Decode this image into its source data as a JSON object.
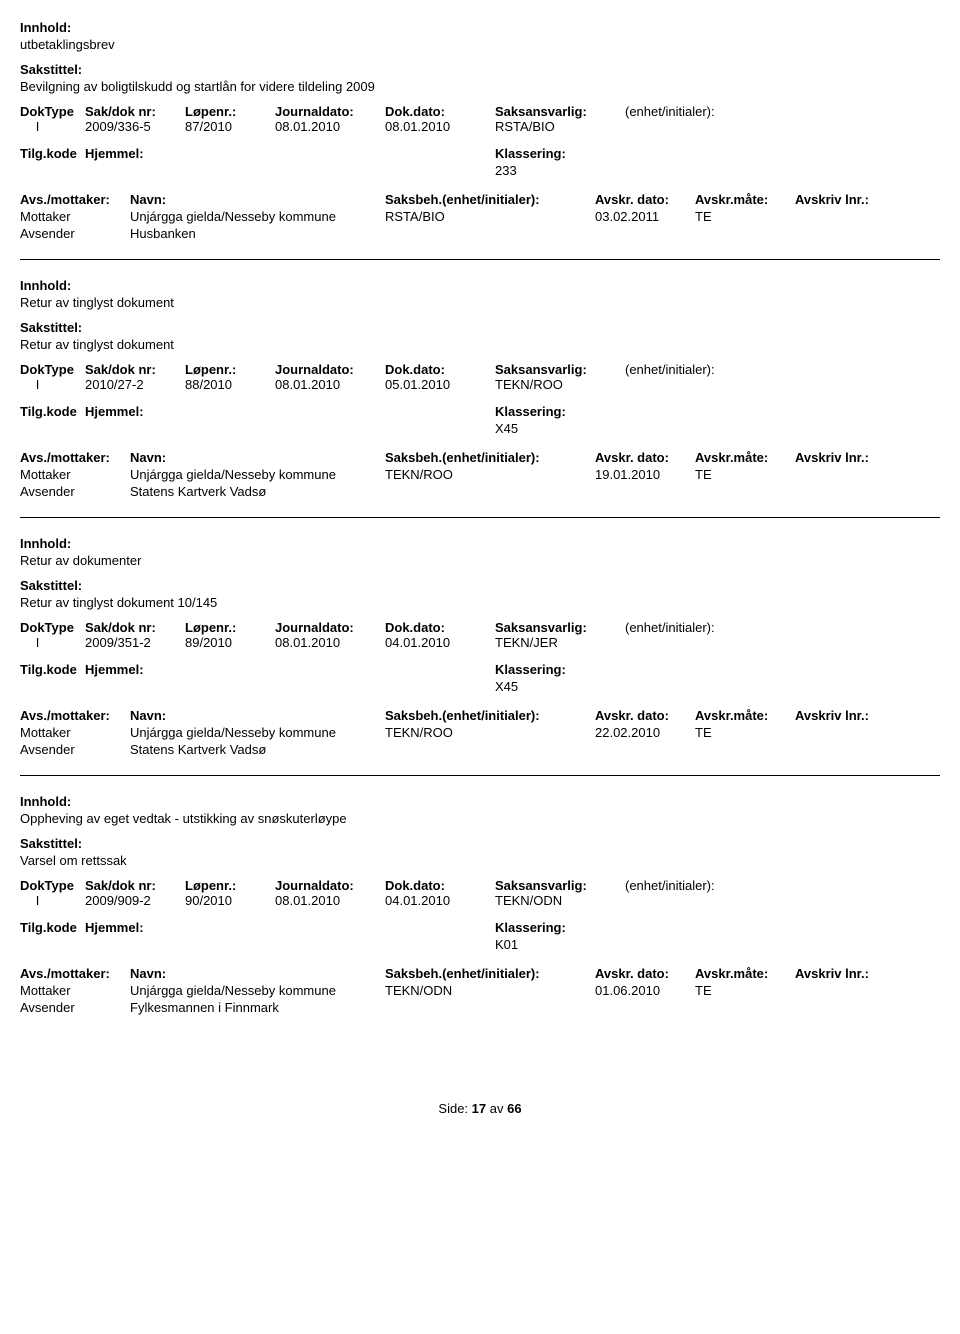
{
  "labels": {
    "innhold": "Innhold:",
    "sakstittel": "Sakstittel:",
    "doktype": "DokType",
    "saknr": "Sak/dok nr:",
    "lopenr": "Løpenr.:",
    "journaldato": "Journaldato:",
    "dokdato": "Dok.dato:",
    "saksansvarlig": "Saksansvarlig:",
    "enhet": "(enhet/initialer):",
    "tilgkode": "Tilg.kode",
    "hjemmel": "Hjemmel:",
    "klassering": "Klassering:",
    "avsmottaker": "Avs./mottaker:",
    "navn": "Navn:",
    "saksbeh": "Saksbeh.(enhet/initialer):",
    "avskrdato": "Avskr. dato:",
    "avskrmate": "Avskr.måte:",
    "avskrivlnr": "Avskriv lnr.:",
    "mottaker": "Mottaker",
    "avsender": "Avsender",
    "side": "Side:",
    "av": "av"
  },
  "footer": {
    "page": "17",
    "total": "66"
  },
  "records": [
    {
      "innhold": "utbetaklingsbrev",
      "sakstittel": "Bevilgning av boligtilskudd og startlån for videre tildeling 2009",
      "doktype": "I",
      "saknr": "2009/336-5",
      "lopenr": "87/2010",
      "journaldato": "08.01.2010",
      "dokdato": "08.01.2010",
      "saksansvarlig": "RSTA/BIO",
      "klassering": "233",
      "parties": [
        {
          "role": "Mottaker",
          "navn": "Unjárgga gielda/Nesseby kommune",
          "saksbeh": "RSTA/BIO",
          "avskrdato": "03.02.2011",
          "avskrmate": "TE"
        },
        {
          "role": "Avsender",
          "navn": "Husbanken",
          "saksbeh": "",
          "avskrdato": "",
          "avskrmate": ""
        }
      ]
    },
    {
      "innhold": "Retur av tinglyst dokument",
      "sakstittel": "Retur av tinglyst dokument",
      "doktype": "I",
      "saknr": "2010/27-2",
      "lopenr": "88/2010",
      "journaldato": "08.01.2010",
      "dokdato": "05.01.2010",
      "saksansvarlig": "TEKN/ROO",
      "klassering": "X45",
      "parties": [
        {
          "role": "Mottaker",
          "navn": "Unjárgga gielda/Nesseby kommune",
          "saksbeh": "TEKN/ROO",
          "avskrdato": "19.01.2010",
          "avskrmate": "TE"
        },
        {
          "role": "Avsender",
          "navn": "Statens Kartverk Vadsø",
          "saksbeh": "",
          "avskrdato": "",
          "avskrmate": ""
        }
      ]
    },
    {
      "innhold": "Retur av dokumenter",
      "sakstittel": "Retur av tinglyst dokument 10/145",
      "doktype": "I",
      "saknr": "2009/351-2",
      "lopenr": "89/2010",
      "journaldato": "08.01.2010",
      "dokdato": "04.01.2010",
      "saksansvarlig": "TEKN/JER",
      "klassering": "X45",
      "parties": [
        {
          "role": "Mottaker",
          "navn": "Unjárgga gielda/Nesseby kommune",
          "saksbeh": "TEKN/ROO",
          "avskrdato": "22.02.2010",
          "avskrmate": "TE"
        },
        {
          "role": "Avsender",
          "navn": "Statens Kartverk Vadsø",
          "saksbeh": "",
          "avskrdato": "",
          "avskrmate": ""
        }
      ]
    },
    {
      "innhold": "Oppheving av eget vedtak - utstikking av snøskuterløype",
      "sakstittel": "Varsel om rettssak",
      "doktype": "I",
      "saknr": "2009/909-2",
      "lopenr": "90/2010",
      "journaldato": "08.01.2010",
      "dokdato": "04.01.2010",
      "saksansvarlig": "TEKN/ODN",
      "klassering": "K01",
      "parties": [
        {
          "role": "Mottaker",
          "navn": "Unjárgga gielda/Nesseby kommune",
          "saksbeh": "TEKN/ODN",
          "avskrdato": "01.06.2010",
          "avskrmate": "TE"
        },
        {
          "role": "Avsender",
          "navn": "Fylkesmannen i Finnmark",
          "saksbeh": "",
          "avskrdato": "",
          "avskrmate": ""
        }
      ]
    }
  ]
}
